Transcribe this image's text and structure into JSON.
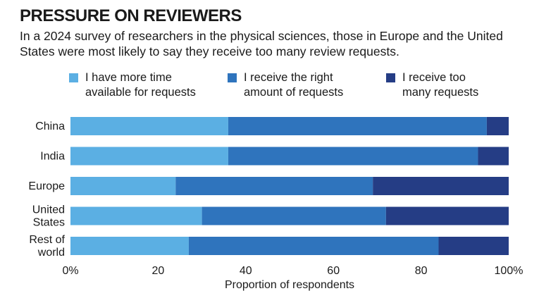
{
  "chart_data": {
    "type": "bar",
    "orientation": "horizontal",
    "stacked": true,
    "title": "PRESSURE ON REVIEWERS",
    "subtitle": "In a 2024 survey of researchers in the physical sciences, those in Europe and the United States were most likely to say they receive too many review requests.",
    "categories": [
      {
        "display": "China",
        "label": "China"
      },
      {
        "display": "India",
        "label": "India"
      },
      {
        "display": "Europe",
        "label": "Europe"
      },
      {
        "display": "United\nStates",
        "label": "United States"
      },
      {
        "display": "Rest of\nworld",
        "label": "Rest of world"
      }
    ],
    "series": [
      {
        "name": "I have more time available for requests",
        "display": "I have more time\navailable for requests",
        "color": "#5bafe3",
        "values": [
          36,
          36,
          24,
          30,
          27
        ]
      },
      {
        "name": "I receive the right amount of requests",
        "display": "I receive the right\namount of requests",
        "color": "#2f74bd",
        "values": [
          59,
          57,
          45,
          42,
          57
        ]
      },
      {
        "name": "I receive too many requests",
        "display": "I receive too\nmany requests",
        "color": "#253d85",
        "values": [
          5,
          7,
          31,
          28,
          16
        ]
      }
    ],
    "xlabel": "Proportion of respondents",
    "xlim": [
      0,
      100
    ],
    "xticks": [
      "0%",
      "20",
      "40",
      "60",
      "80",
      "100%"
    ],
    "grid": false,
    "legend": "top"
  }
}
